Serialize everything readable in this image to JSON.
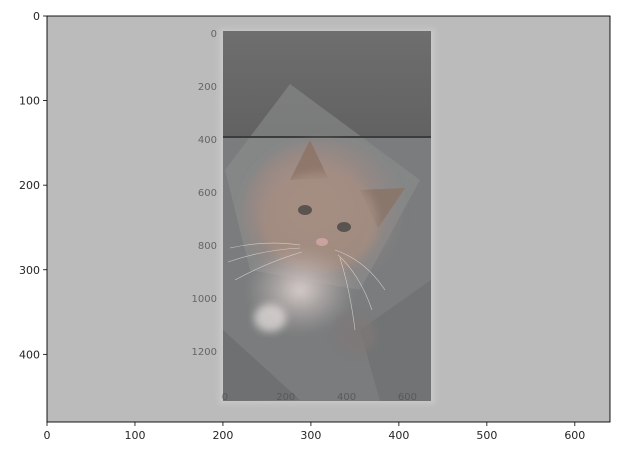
{
  "chart_data": {
    "type": "image",
    "title": "",
    "xlabel": "",
    "ylabel": "",
    "xlim": [
      0,
      640
    ],
    "ylim": [
      480,
      0
    ],
    "x_ticks": [
      0,
      100,
      200,
      300,
      400,
      500,
      600
    ],
    "y_ticks": [
      0,
      100,
      200,
      300,
      400
    ],
    "grid": false,
    "background_color": "#bbbbbb",
    "image_content": "cat-photo",
    "inner_axes": {
      "x_ticks": [
        0,
        200,
        400,
        600
      ],
      "y_ticks": [
        0,
        200,
        400,
        600,
        800,
        1000,
        1200
      ],
      "xlim": [
        0,
        760
      ],
      "ylim": [
        1340,
        0
      ],
      "extent": [
        200,
        440,
        20,
        440
      ]
    }
  }
}
